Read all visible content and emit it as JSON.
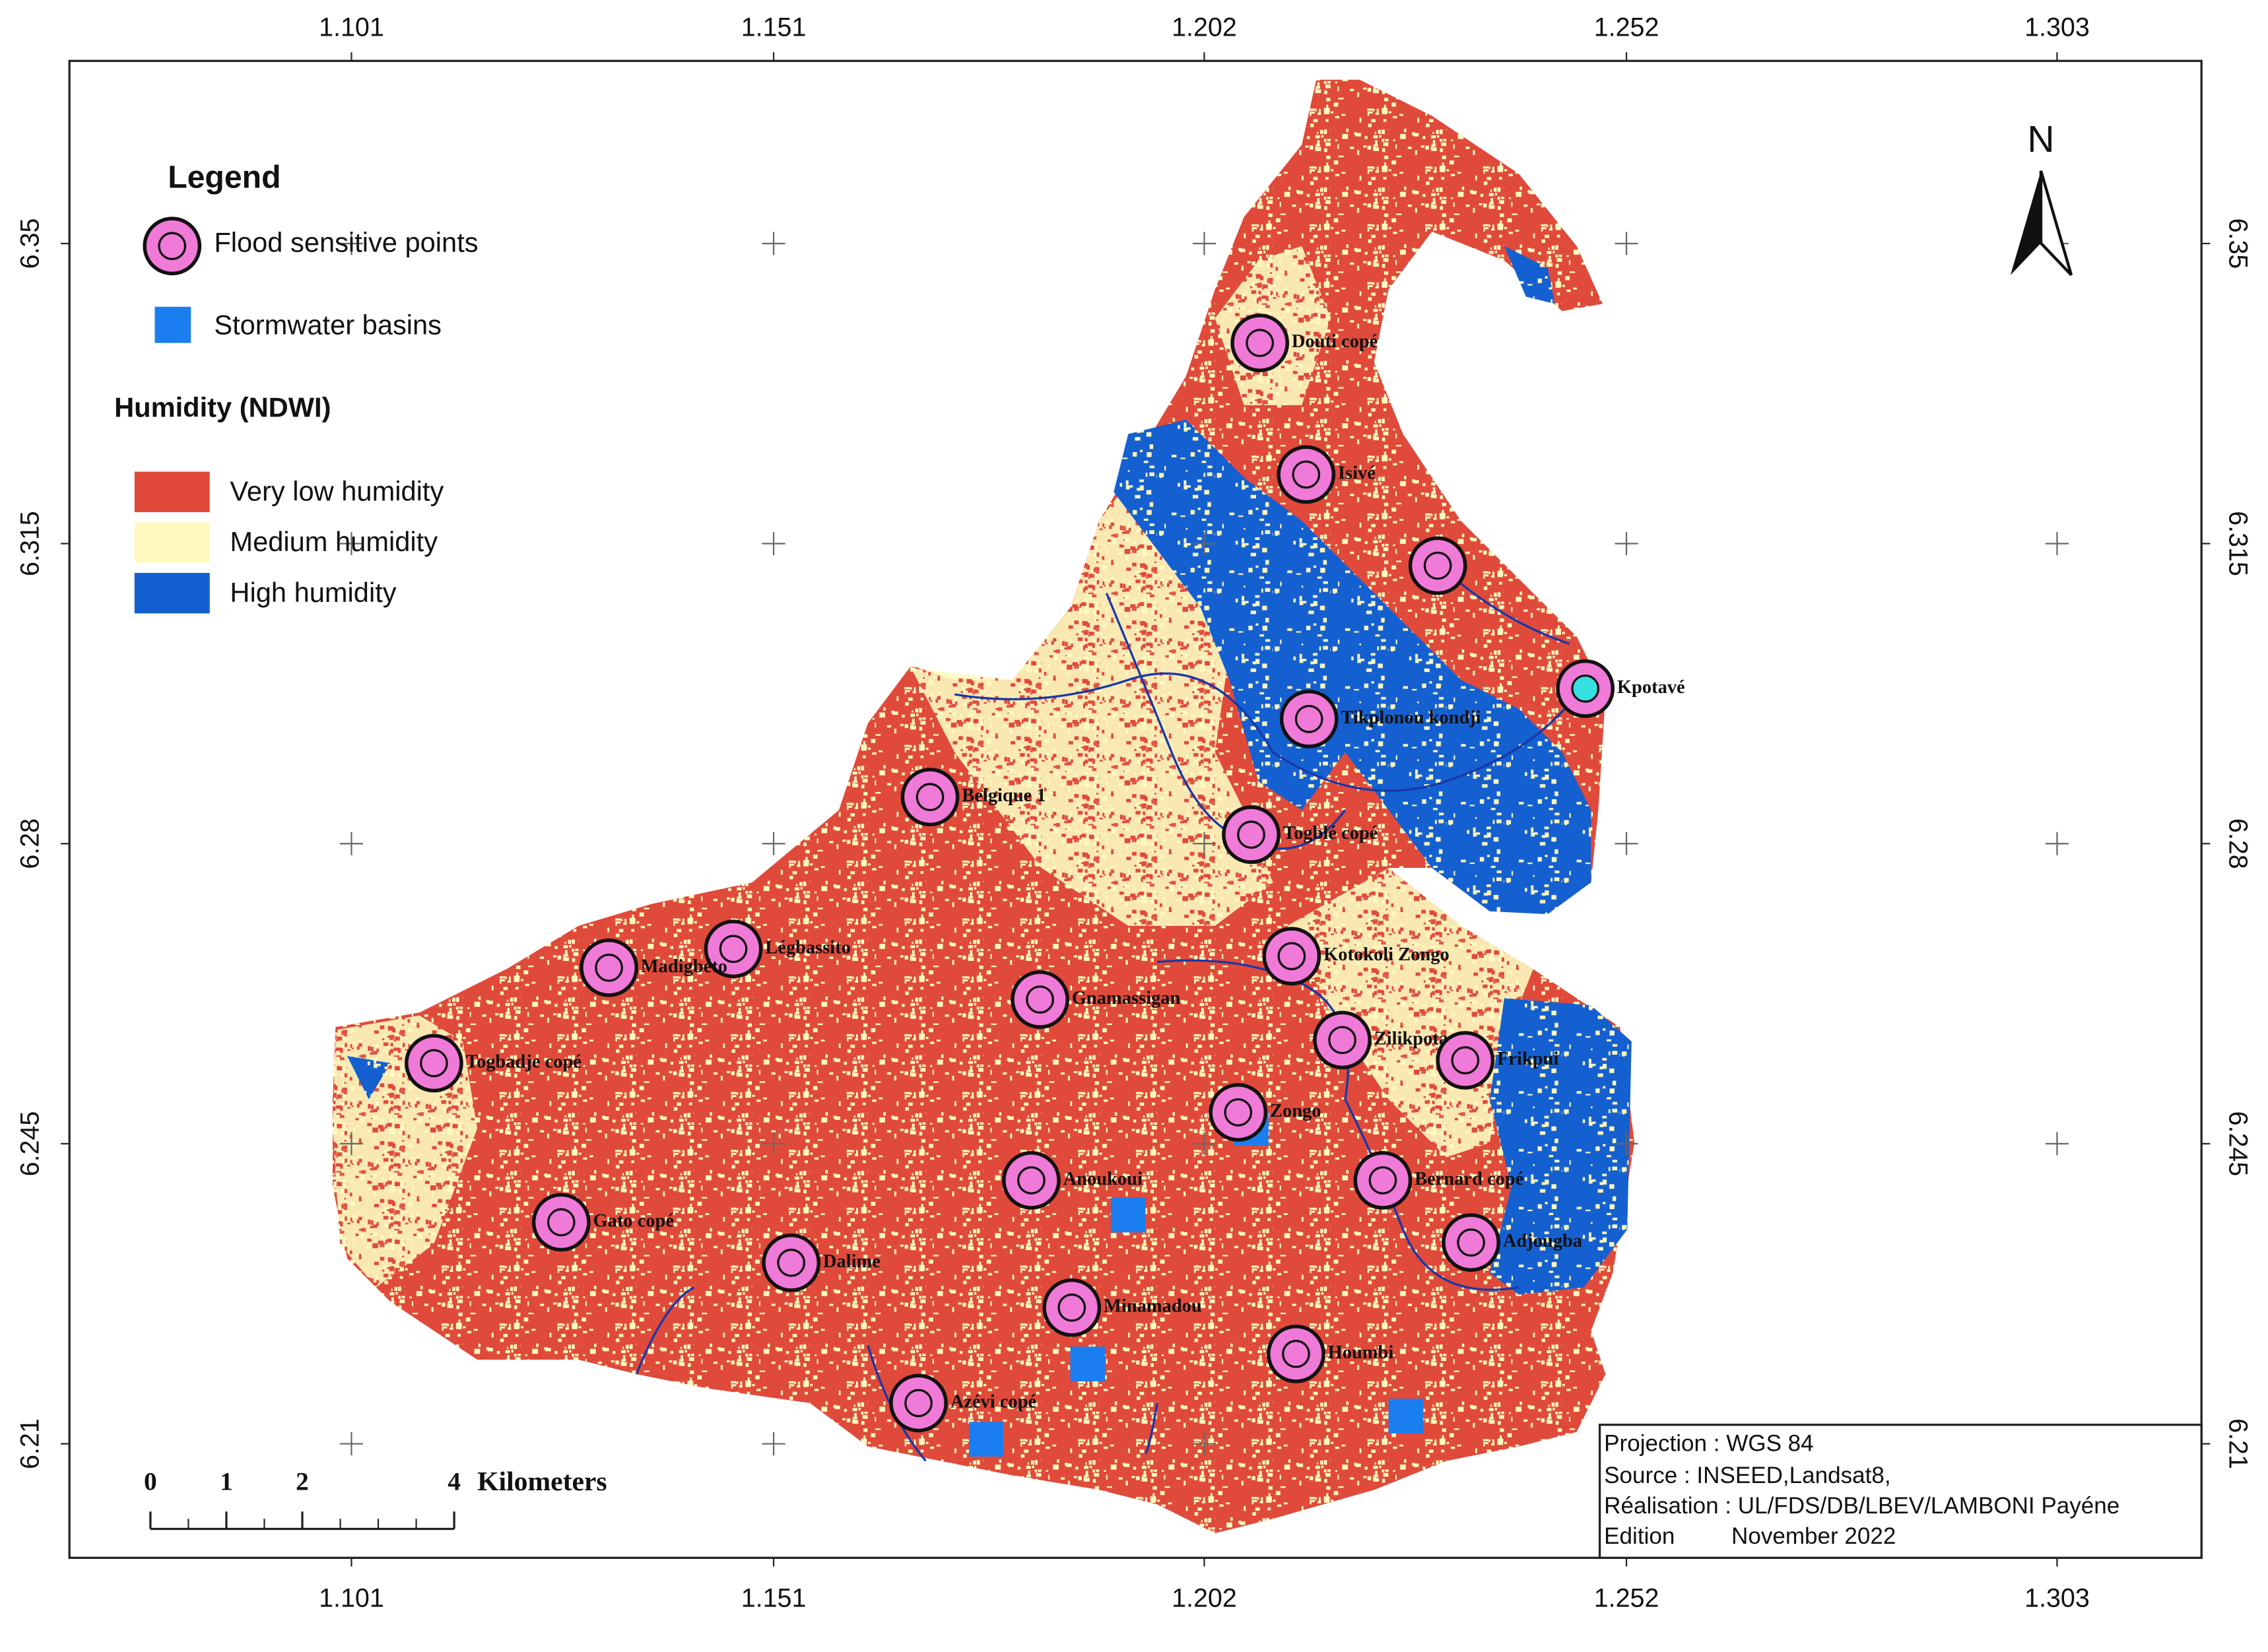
{
  "map": {
    "xticks": [
      1.101,
      1.151,
      1.202,
      1.252,
      1.303
    ],
    "yticks": [
      6.35,
      6.315,
      6.28,
      6.245,
      6.21
    ],
    "xlim": [
      1.0676,
      1.3201
    ],
    "ylim": [
      6.1967,
      6.3713
    ],
    "legend": {
      "title": "Legend",
      "points": {
        "label": "Flood sensitive points",
        "color": "#f07ad8"
      },
      "basins": {
        "label": "Stormwater basins",
        "color": "#1a7ef0"
      },
      "humidity_title": "Humidity (NDWI)",
      "classes": [
        {
          "label": "Very low humidity",
          "color": "#e04a3a"
        },
        {
          "label": "Medium humidity",
          "color": "#fdf9bf"
        },
        {
          "label": "High humidity",
          "color": "#1560d0"
        }
      ]
    },
    "north": "N",
    "scale_bar": {
      "ticks": [
        0,
        1,
        2,
        4
      ],
      "unit": "Kilometers"
    },
    "points": [
      "Douti copé",
      "Isivé",
      null,
      "Kpotavé",
      "Tikplonou kondji",
      "Belgique 1",
      "Togblé copé",
      "Légbassito",
      "Madigbéto",
      "Kotokoli Zongo",
      "Gnamassigan",
      "Togbadje copé",
      "Zilikpota",
      "Frikpui",
      "Zongo",
      "Anoukoui",
      "Bernard copé",
      "Gato copé",
      "Adjougba",
      "Dalime",
      "Minamadou",
      "Houmbi",
      "Azévi copé"
    ],
    "info": [
      "Projection : WGS 84",
      "Source : INSEED,Landsat8,",
      "Réalisation : UL/FDS/DB/LBEV/LAMBONI Payéne",
      "Edition",
      "November 2022"
    ]
  }
}
